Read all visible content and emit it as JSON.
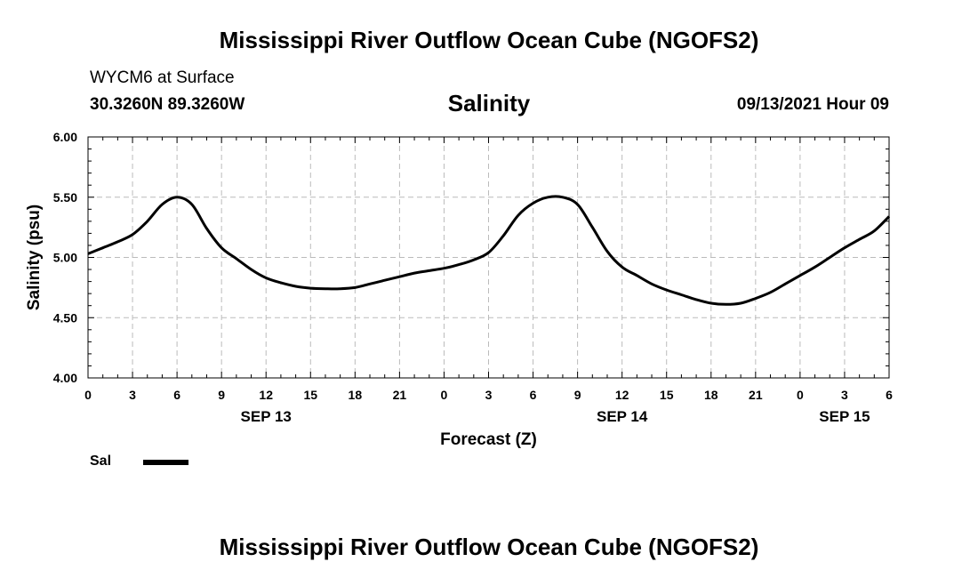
{
  "header": {
    "title": "Mississippi River Outflow Ocean Cube (NGOFS2)",
    "station": "WYCM6 at Surface",
    "coords": "30.3260N  89.3260W",
    "variable": "Salinity",
    "datetime": "09/13/2021 Hour 09"
  },
  "footer": {
    "title": "Mississippi River Outflow Ocean Cube (NGOFS2)"
  },
  "legend": {
    "label": "Sal"
  },
  "chart_data": {
    "type": "line",
    "title": "Salinity",
    "xlabel": "Forecast (Z)",
    "ylabel": "Salinity (psu)",
    "xlim": [
      0,
      54
    ],
    "ylim": [
      4.0,
      6.0
    ],
    "grid": true,
    "x_ticks": [
      0,
      3,
      6,
      9,
      12,
      15,
      18,
      21,
      24,
      27,
      30,
      33,
      36,
      39,
      42,
      45,
      48,
      51,
      54
    ],
    "x_tick_labels": [
      "0",
      "3",
      "6",
      "9",
      "12",
      "15",
      "18",
      "21",
      "0",
      "3",
      "6",
      "9",
      "12",
      "15",
      "18",
      "21",
      "0",
      "3",
      "6"
    ],
    "y_ticks": [
      4.0,
      4.5,
      5.0,
      5.5,
      6.0
    ],
    "y_tick_labels": [
      "4.00",
      "4.50",
      "5.00",
      "5.50",
      "6.00"
    ],
    "date_labels": [
      {
        "x": 12,
        "label": "SEP 13"
      },
      {
        "x": 36,
        "label": "SEP 14"
      },
      {
        "x": 51,
        "label": "SEP 15"
      }
    ],
    "series": [
      {
        "name": "Sal",
        "color": "#000000",
        "x": [
          0,
          1,
          2,
          3,
          4,
          5,
          6,
          7,
          8,
          9,
          10,
          11,
          12,
          13,
          14,
          15,
          16,
          17,
          18,
          19,
          20,
          21,
          22,
          23,
          24,
          25,
          26,
          27,
          28,
          29,
          30,
          31,
          32,
          33,
          34,
          35,
          36,
          37,
          38,
          39,
          40,
          41,
          42,
          43,
          44,
          45,
          46,
          47,
          48,
          49,
          50,
          51,
          52,
          53,
          54
        ],
        "values": [
          5.03,
          5.08,
          5.13,
          5.19,
          5.3,
          5.44,
          5.5,
          5.44,
          5.24,
          5.08,
          4.99,
          4.9,
          4.83,
          4.79,
          4.76,
          4.745,
          4.74,
          4.74,
          4.75,
          4.78,
          4.81,
          4.84,
          4.87,
          4.89,
          4.91,
          4.94,
          4.98,
          5.04,
          5.18,
          5.35,
          5.45,
          5.5,
          5.5,
          5.44,
          5.25,
          5.05,
          4.92,
          4.85,
          4.78,
          4.73,
          4.69,
          4.65,
          4.62,
          4.61,
          4.62,
          4.66,
          4.71,
          4.78,
          4.85,
          4.92,
          5.0,
          5.08,
          5.15,
          5.22,
          5.34
        ]
      }
    ]
  }
}
